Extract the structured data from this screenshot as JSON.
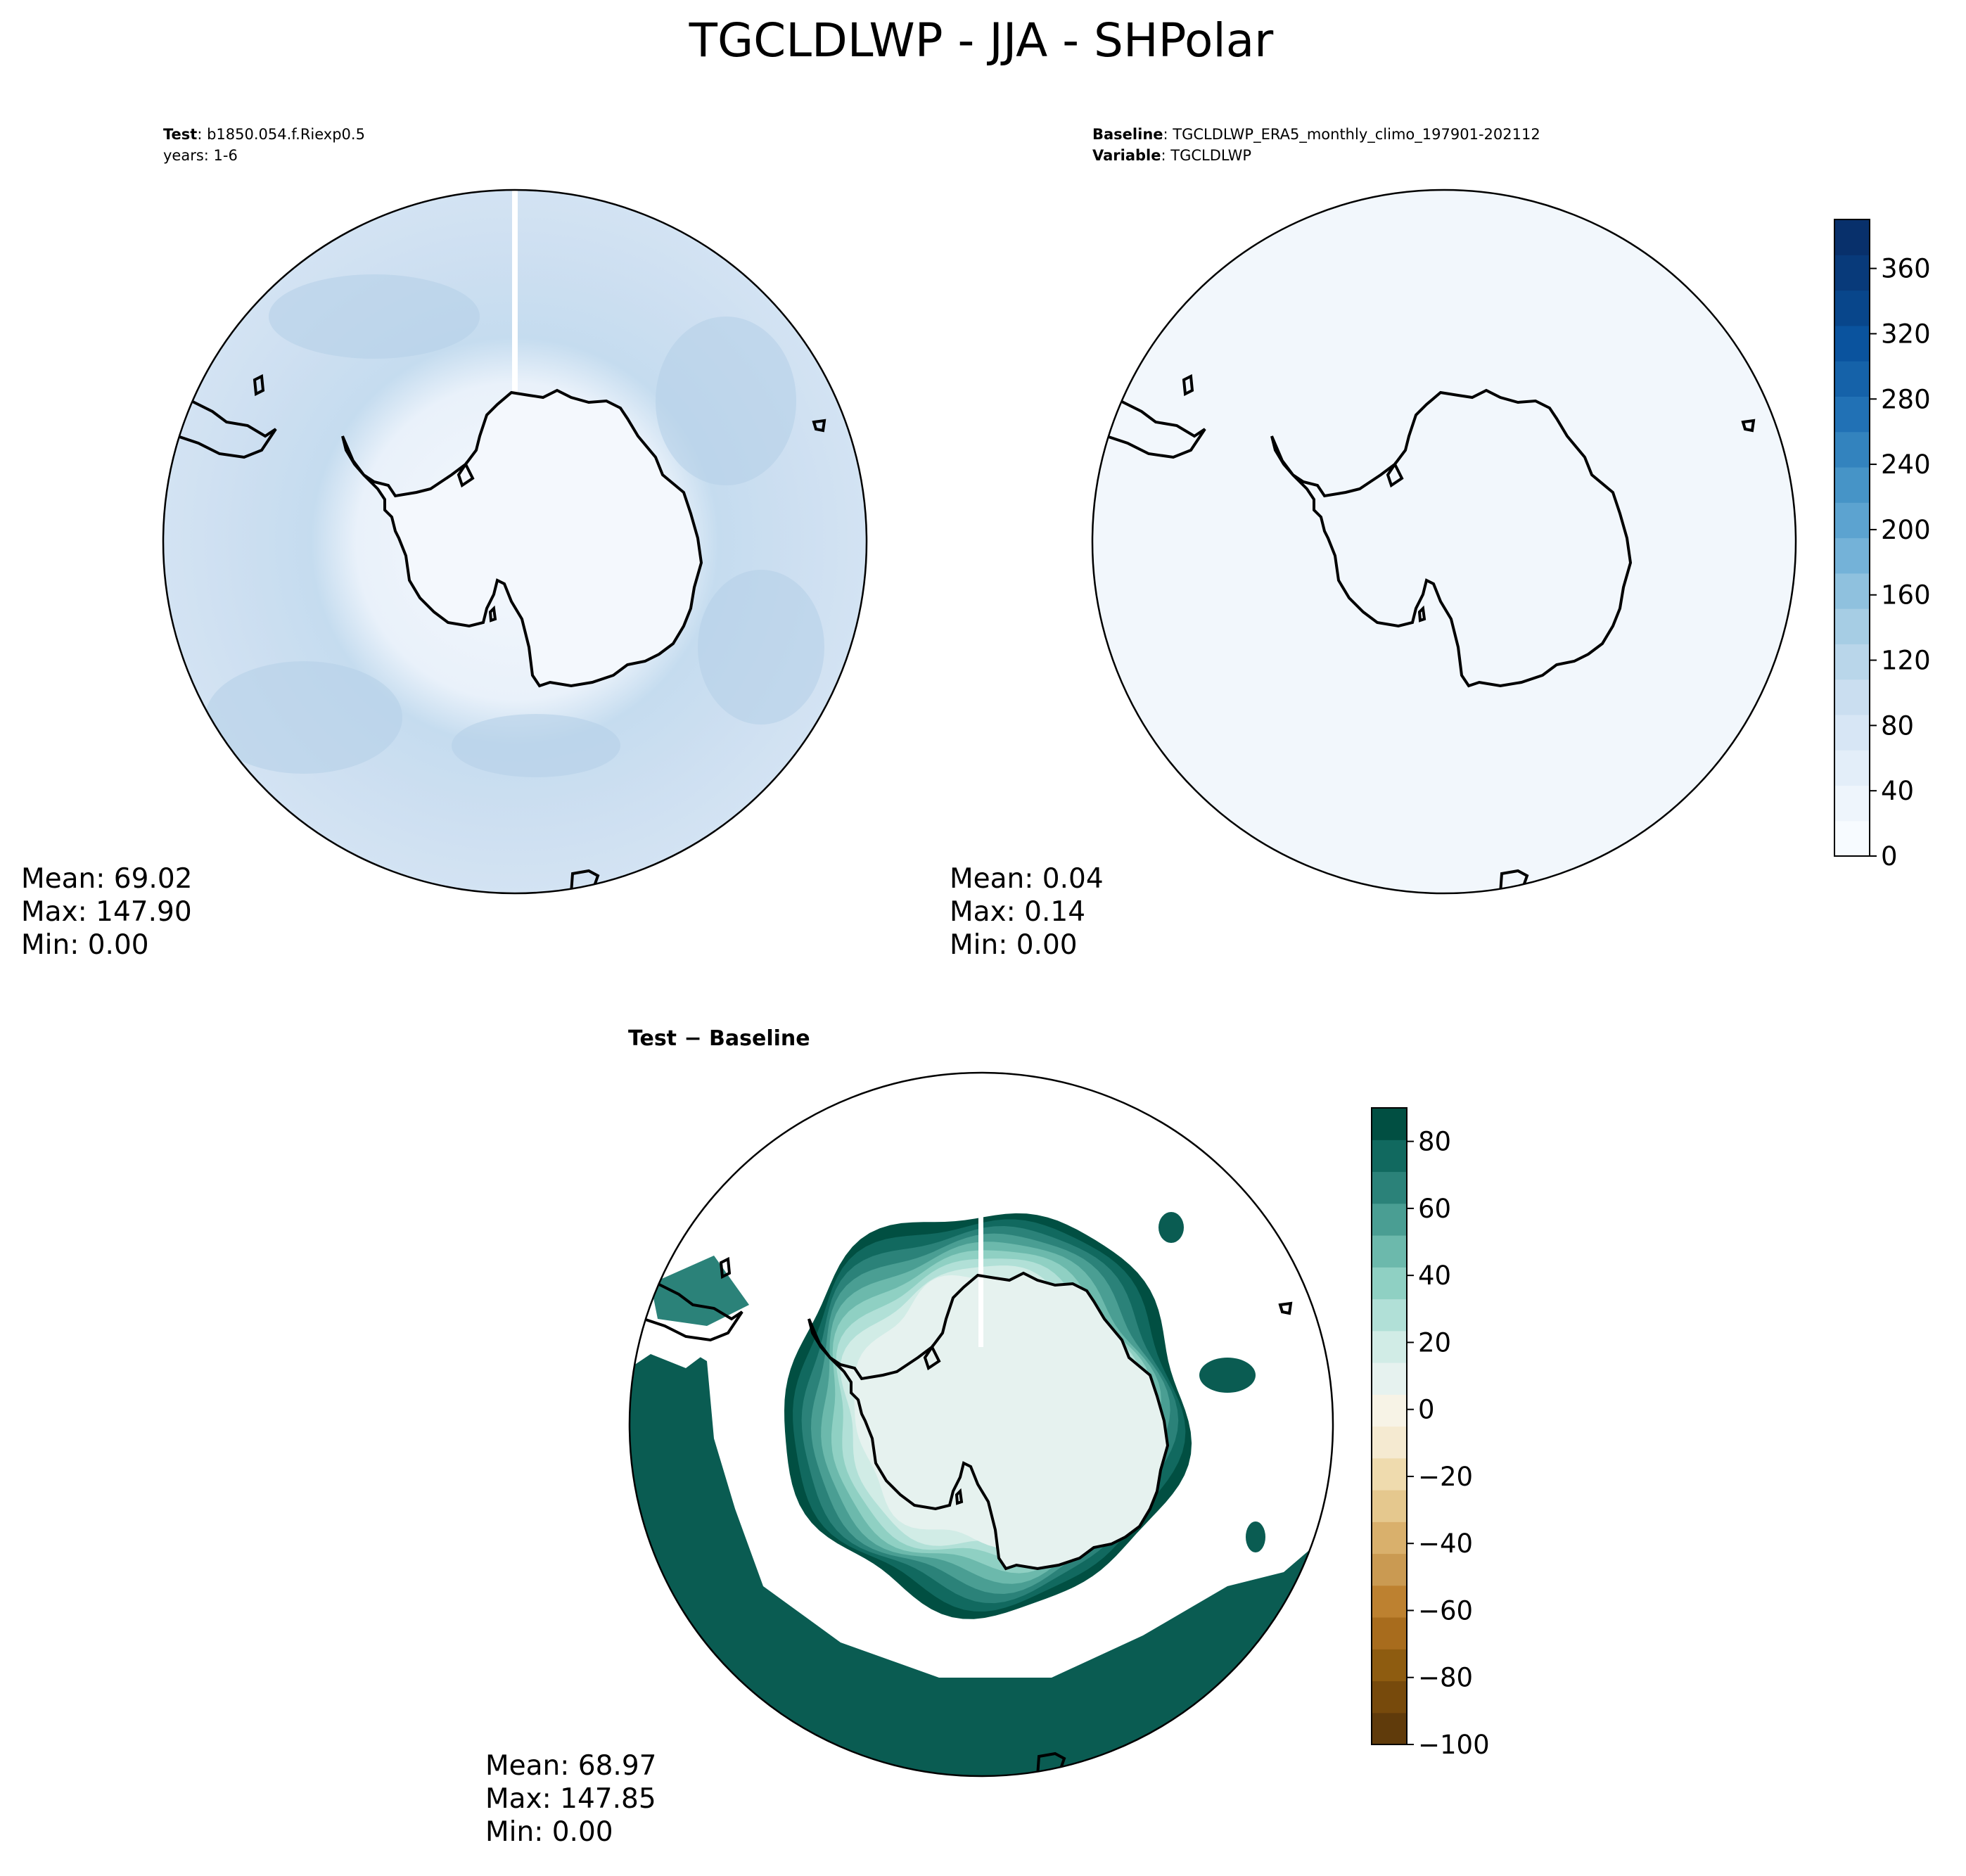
{
  "title": "TGCLDLWP - JJA - SHPolar",
  "chart_data": [
    {
      "type": "heatmap",
      "panel": "test",
      "projection": "south-polar-stereographic",
      "header": [
        {
          "bold": "Test",
          "text": ": b1850.054.f.Riexp0.5"
        },
        {
          "bold": "",
          "text": "years: 1-6"
        }
      ],
      "stats": {
        "mean": "Mean: 69.02",
        "max": "Max: 147.90",
        "min": "Min:  0.00"
      }
    },
    {
      "type": "heatmap",
      "panel": "baseline",
      "projection": "south-polar-stereographic",
      "header": [
        {
          "bold": "Baseline",
          "text": ": TGCLDLWP_ERA5_monthly_climo_197901-202112"
        },
        {
          "bold": "Variable",
          "text": ": TGCLDLWP"
        }
      ],
      "stats": {
        "mean": "Mean:  0.04",
        "max": "Max:  0.14",
        "min": "Min:  0.00"
      }
    },
    {
      "type": "heatmap",
      "panel": "difference",
      "projection": "south-polar-stereographic",
      "header": [
        {
          "bold": "Test − Baseline",
          "text": ""
        }
      ],
      "stats": {
        "mean": "Mean: 68.97",
        "max": "Max: 147.85",
        "min": "Min:  0.00"
      }
    }
  ],
  "colorbars": {
    "main": {
      "range": [
        0,
        390
      ],
      "ticks": [
        0,
        40,
        80,
        120,
        160,
        200,
        240,
        280,
        320,
        360
      ],
      "tick_labels": [
        "0",
        "40",
        "80",
        "120",
        "160",
        "200",
        "240",
        "280",
        "320",
        "360"
      ],
      "colormap": "Blues",
      "colors": [
        "#f7fbff",
        "#eef5fc",
        "#e3eef9",
        "#d7e6f5",
        "#cadef0",
        "#b9d6ea",
        "#a6cde4",
        "#8fc1de",
        "#74b2d8",
        "#5ca3d0",
        "#4694c7",
        "#3383be",
        "#2171b5",
        "#1562a9",
        "#0a539e",
        "#08468b",
        "#083a7a",
        "#08306b"
      ]
    },
    "diff": {
      "range": [
        -100,
        90
      ],
      "ticks": [
        -100,
        -80,
        -60,
        -40,
        -20,
        0,
        20,
        40,
        60,
        80
      ],
      "tick_labels": [
        "−100",
        "−80",
        "−60",
        "−40",
        "−20",
        "0",
        "20",
        "40",
        "60",
        "80"
      ],
      "colormap": "BrBG",
      "colors": [
        "#603b0b",
        "#774a0c",
        "#8e5c10",
        "#a86c1d",
        "#bd8130",
        "#ca9a52",
        "#d9b06c",
        "#e5c88e",
        "#efdbae",
        "#f5ead1",
        "#f7f3e6",
        "#e6f2ef",
        "#d1ece6",
        "#b1e0d7",
        "#8fd0c3",
        "#6cb9ac",
        "#4a9e93",
        "#2b8279",
        "#11695f",
        "#014f42"
      ]
    }
  },
  "map_colors": {
    "test_ocean": "#cddff1",
    "test_storm": "#b5d1e8",
    "test_ring": "#e6f0fa",
    "baseline_fill": "#f2f7fc",
    "diff_interior": "#e6f2ef",
    "diff_ring": [
      "#014f42",
      "#11695f",
      "#2b8279",
      "#4a9e93",
      "#6cb9ac",
      "#8fd0c3",
      "#b1e0d7",
      "#d1ece6"
    ],
    "diff_band": "#0a5c52"
  }
}
